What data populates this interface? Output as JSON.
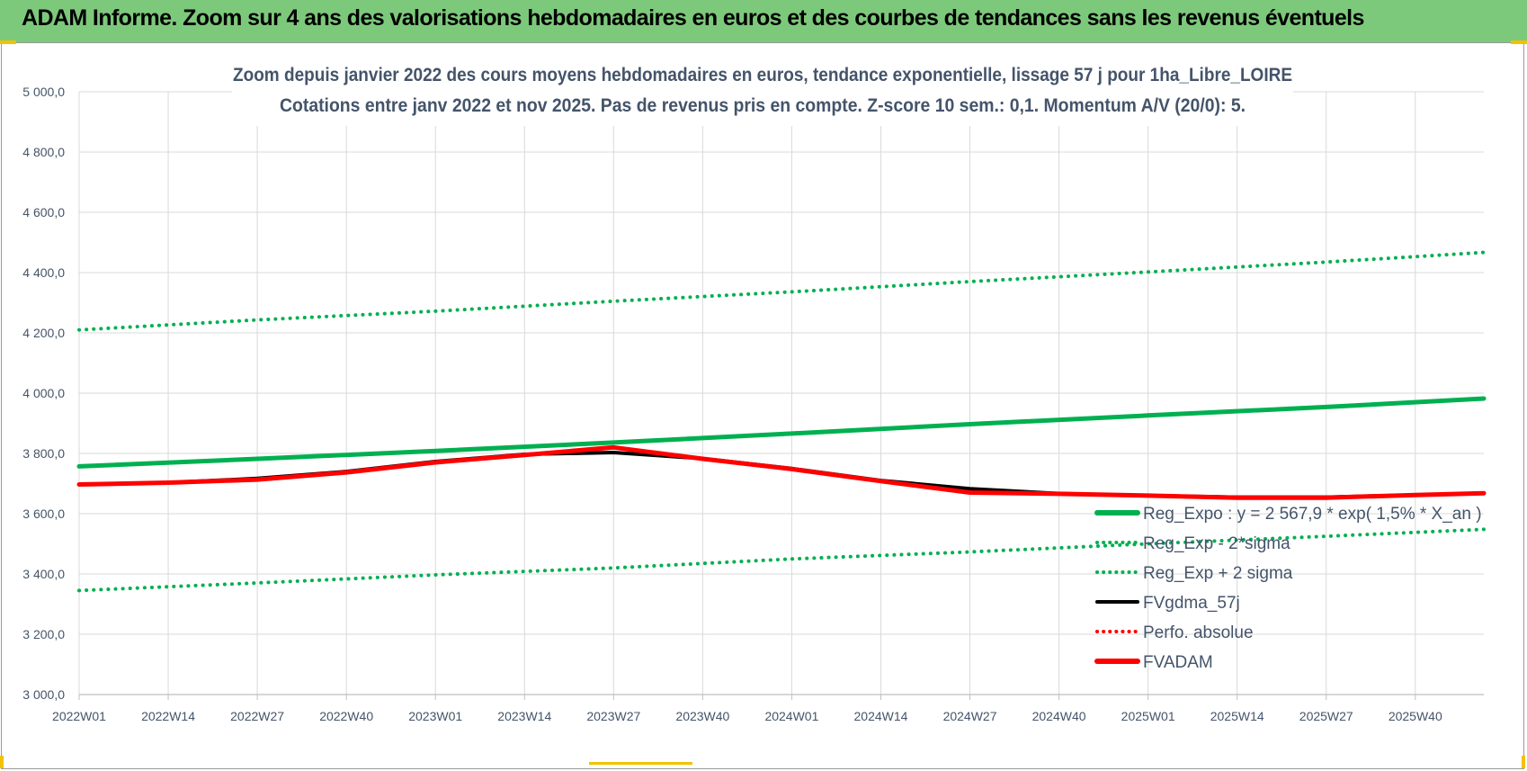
{
  "header": {
    "title": "ADAM Informe. Zoom sur 4 ans des valorisations hebdomadaires en euros et des courbes de tendances sans les revenus éventuels"
  },
  "chart_data": {
    "type": "line",
    "title_line1": "Zoom depuis janvier 2022 des cours moyens hebdomadaires en euros, tendance exponentielle, lissage 57 j pour 1ha_Libre_LOIRE",
    "title_line2": "Cotations entre janv 2022 et nov 2025. Pas de revenus pris en compte. Z-score 10 sem.: 0,1. Momentum A/V (20/0): 5.",
    "xlabel": "",
    "ylabel": "",
    "x_tick_labels": [
      "2022W01",
      "2022W14",
      "2022W27",
      "2022W40",
      "2023W01",
      "2023W14",
      "2023W27",
      "2023W40",
      "2024W01",
      "2024W14",
      "2024W27",
      "2024W40",
      "2025W01",
      "2025W14",
      "2025W27",
      "2025W40"
    ],
    "y_tick_labels": [
      "3 000,0",
      "3 200,0",
      "3 400,0",
      "3 600,0",
      "3 800,0",
      "4 000,0",
      "4 200,0",
      "4 400,0",
      "4 600,0",
      "4 800,0",
      "5 000,0"
    ],
    "ylim": [
      3000,
      5000
    ],
    "y_ticks": [
      3000,
      3200,
      3400,
      3600,
      3800,
      4000,
      4200,
      4400,
      4600,
      4800,
      5000
    ],
    "x_range_weeks": [
      0,
      205
    ],
    "x_tick_weeks": [
      0,
      13,
      26,
      39,
      52,
      65,
      78,
      91,
      104,
      117,
      130,
      143,
      156,
      169,
      182,
      195
    ],
    "grid": true,
    "legend_position": "bottom-right",
    "series": [
      {
        "name": "Reg_Expo : y = 2 567,9 * exp( 1,5% *  X_an )",
        "color": "#00b050",
        "style": "solid",
        "points": [
          [
            0,
            3757
          ],
          [
            26,
            3782
          ],
          [
            52,
            3808
          ],
          [
            78,
            3836
          ],
          [
            104,
            3866
          ],
          [
            130,
            3897
          ],
          [
            156,
            3926
          ],
          [
            182,
            3954
          ],
          [
            205,
            3982
          ]
        ]
      },
      {
        "name": "Reg_Exp - 2*sigma",
        "color": "#00b050",
        "style": "dotted",
        "points": [
          [
            0,
            3345
          ],
          [
            26,
            3370
          ],
          [
            52,
            3397
          ],
          [
            78,
            3420
          ],
          [
            104,
            3450
          ],
          [
            130,
            3473
          ],
          [
            156,
            3500
          ],
          [
            182,
            3525
          ],
          [
            205,
            3548
          ]
        ]
      },
      {
        "name": "Reg_Exp + 2 sigma",
        "color": "#00b050",
        "style": "dotted",
        "points": [
          [
            0,
            4210
          ],
          [
            26,
            4243
          ],
          [
            52,
            4272
          ],
          [
            78,
            4305
          ],
          [
            104,
            4336
          ],
          [
            130,
            4370
          ],
          [
            156,
            4402
          ],
          [
            182,
            4435
          ],
          [
            205,
            4467
          ]
        ]
      },
      {
        "name": "FVgdma_57j",
        "color": "#000000",
        "style": "solid",
        "points": [
          [
            0,
            3697
          ],
          [
            13,
            3703
          ],
          [
            26,
            3717
          ],
          [
            39,
            3740
          ],
          [
            52,
            3773
          ],
          [
            65,
            3797
          ],
          [
            78,
            3803
          ],
          [
            91,
            3783
          ],
          [
            104,
            3750
          ],
          [
            117,
            3710
          ],
          [
            130,
            3683
          ],
          [
            143,
            3667
          ],
          [
            156,
            3660
          ],
          [
            169,
            3655
          ],
          [
            182,
            3655
          ],
          [
            195,
            3662
          ],
          [
            205,
            3668
          ]
        ]
      },
      {
        "name": "Perfo. absolue",
        "color": "#ff0000",
        "style": "dotted",
        "points": []
      },
      {
        "name": "FVADAM",
        "color": "#ff0000",
        "style": "solid",
        "points": [
          [
            0,
            3697
          ],
          [
            13,
            3703
          ],
          [
            26,
            3713
          ],
          [
            39,
            3737
          ],
          [
            52,
            3770
          ],
          [
            65,
            3795
          ],
          [
            78,
            3820
          ],
          [
            91,
            3782
          ],
          [
            104,
            3748
          ],
          [
            117,
            3708
          ],
          [
            130,
            3670
          ],
          [
            143,
            3666
          ],
          [
            156,
            3660
          ],
          [
            169,
            3653
          ],
          [
            182,
            3653
          ],
          [
            195,
            3662
          ],
          [
            205,
            3668
          ]
        ]
      }
    ]
  }
}
